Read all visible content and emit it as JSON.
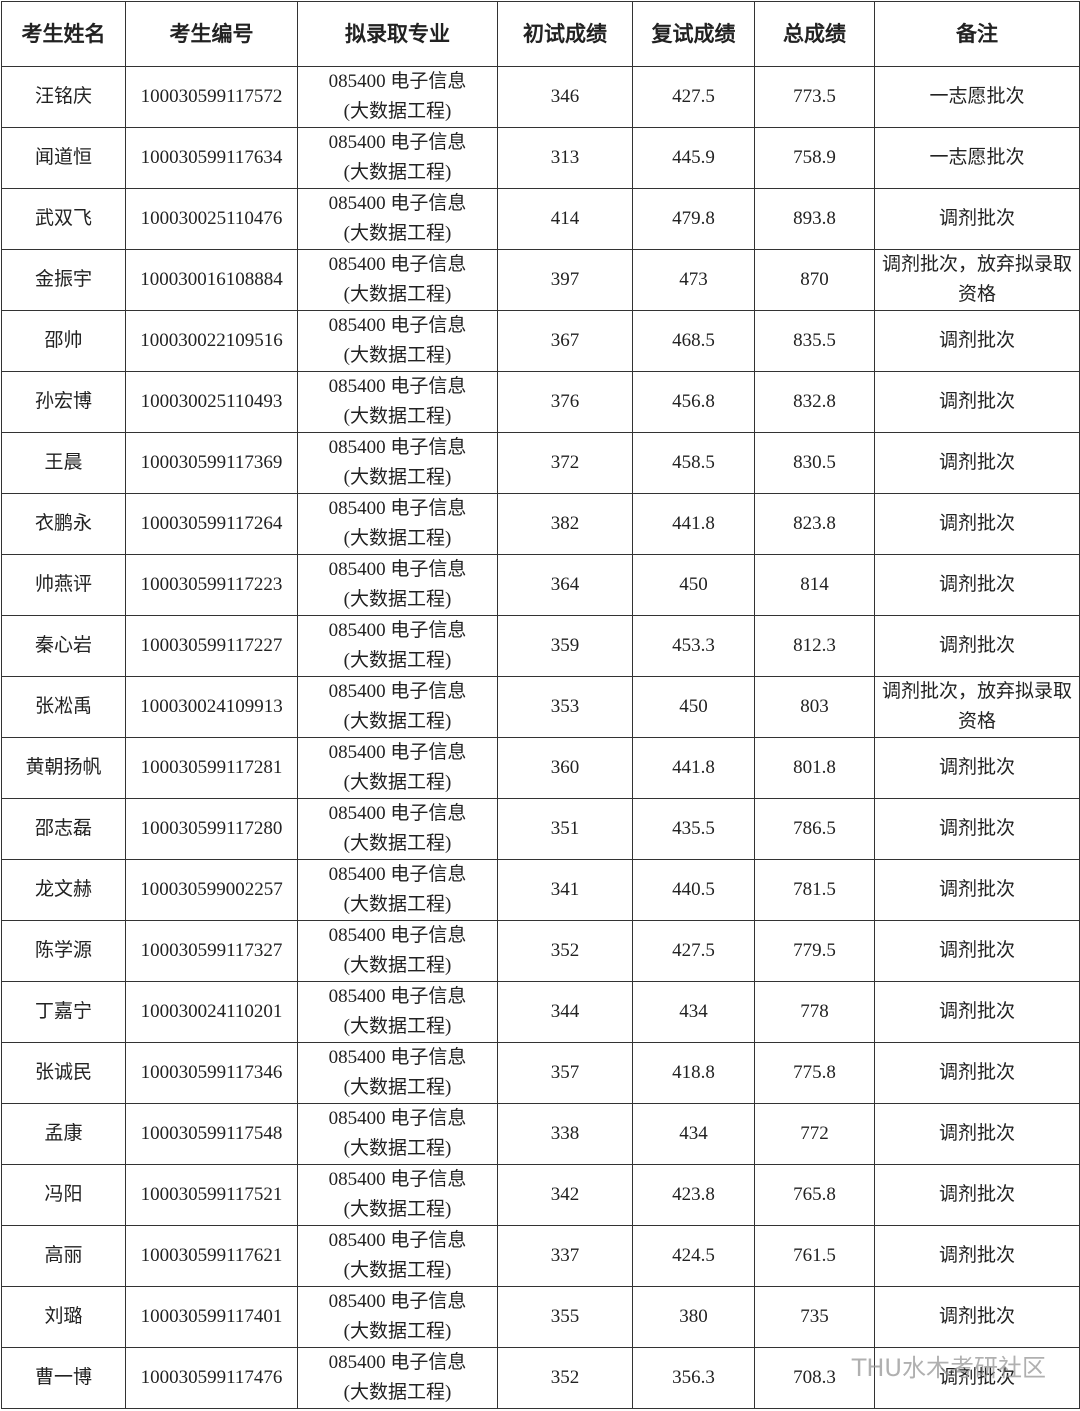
{
  "table": {
    "header": [
      "考生姓名",
      "考生编号",
      "拟录取专业",
      "初试成绩",
      "复试成绩",
      "总成绩",
      "备注"
    ],
    "rows": [
      [
        "汪铭庆",
        "100030599117572",
        [
          "085400 电子信息",
          "(大数据工程)"
        ],
        "346",
        "427.5",
        "773.5",
        "一志愿批次"
      ],
      [
        "闻道恒",
        "100030599117634",
        [
          "085400 电子信息",
          "(大数据工程)"
        ],
        "313",
        "445.9",
        "758.9",
        "一志愿批次"
      ],
      [
        "武双飞",
        "100030025110476",
        [
          "085400 电子信息",
          "(大数据工程)"
        ],
        "414",
        "479.8",
        "893.8",
        "调剂批次"
      ],
      [
        "金振宇",
        "100030016108884",
        [
          "085400 电子信息",
          "(大数据工程)"
        ],
        "397",
        "473",
        "870",
        "调剂批次，放弃拟录取资格"
      ],
      [
        "邵帅",
        "100030022109516",
        [
          "085400 电子信息",
          "(大数据工程)"
        ],
        "367",
        "468.5",
        "835.5",
        "调剂批次"
      ],
      [
        "孙宏博",
        "100030025110493",
        [
          "085400 电子信息",
          "(大数据工程)"
        ],
        "376",
        "456.8",
        "832.8",
        "调剂批次"
      ],
      [
        "王晨",
        "100030599117369",
        [
          "085400 电子信息",
          "(大数据工程)"
        ],
        "372",
        "458.5",
        "830.5",
        "调剂批次"
      ],
      [
        "衣鹏永",
        "100030599117264",
        [
          "085400 电子信息",
          "(大数据工程)"
        ],
        "382",
        "441.8",
        "823.8",
        "调剂批次"
      ],
      [
        "帅燕评",
        "100030599117223",
        [
          "085400 电子信息",
          "(大数据工程)"
        ],
        "364",
        "450",
        "814",
        "调剂批次"
      ],
      [
        "秦心岩",
        "100030599117227",
        [
          "085400 电子信息",
          "(大数据工程)"
        ],
        "359",
        "453.3",
        "812.3",
        "调剂批次"
      ],
      [
        "张凇禹",
        "100030024109913",
        [
          "085400 电子信息",
          "(大数据工程)"
        ],
        "353",
        "450",
        "803",
        "调剂批次，放弃拟录取资格"
      ],
      [
        "黄朝扬帆",
        "100030599117281",
        [
          "085400 电子信息",
          "(大数据工程)"
        ],
        "360",
        "441.8",
        "801.8",
        "调剂批次"
      ],
      [
        "邵志磊",
        "100030599117280",
        [
          "085400 电子信息",
          "(大数据工程)"
        ],
        "351",
        "435.5",
        "786.5",
        "调剂批次"
      ],
      [
        "龙文赫",
        "100030599002257",
        [
          "085400 电子信息",
          "(大数据工程)"
        ],
        "341",
        "440.5",
        "781.5",
        "调剂批次"
      ],
      [
        "陈学源",
        "100030599117327",
        [
          "085400 电子信息",
          "(大数据工程)"
        ],
        "352",
        "427.5",
        "779.5",
        "调剂批次"
      ],
      [
        "丁嘉宁",
        "100030024110201",
        [
          "085400 电子信息",
          "(大数据工程)"
        ],
        "344",
        "434",
        "778",
        "调剂批次"
      ],
      [
        "张诚民",
        "100030599117346",
        [
          "085400 电子信息",
          "(大数据工程)"
        ],
        "357",
        "418.8",
        "775.8",
        "调剂批次"
      ],
      [
        "孟康",
        "100030599117548",
        [
          "085400 电子信息",
          "(大数据工程)"
        ],
        "338",
        "434",
        "772",
        "调剂批次"
      ],
      [
        "冯阳",
        "100030599117521",
        [
          "085400 电子信息",
          "(大数据工程)"
        ],
        "342",
        "423.8",
        "765.8",
        "调剂批次"
      ],
      [
        "高丽",
        "100030599117621",
        [
          "085400 电子信息",
          "(大数据工程)"
        ],
        "337",
        "424.5",
        "761.5",
        "调剂批次"
      ],
      [
        "刘璐",
        "100030599117401",
        [
          "085400 电子信息",
          "(大数据工程)"
        ],
        "355",
        "380",
        "735",
        "调剂批次"
      ],
      [
        "曹一博",
        "100030599117476",
        [
          "085400 电子信息",
          "(大数据工程)"
        ],
        "352",
        "356.3",
        "708.3",
        "调剂批次"
      ]
    ]
  },
  "watermark": "THU水木考研社区"
}
